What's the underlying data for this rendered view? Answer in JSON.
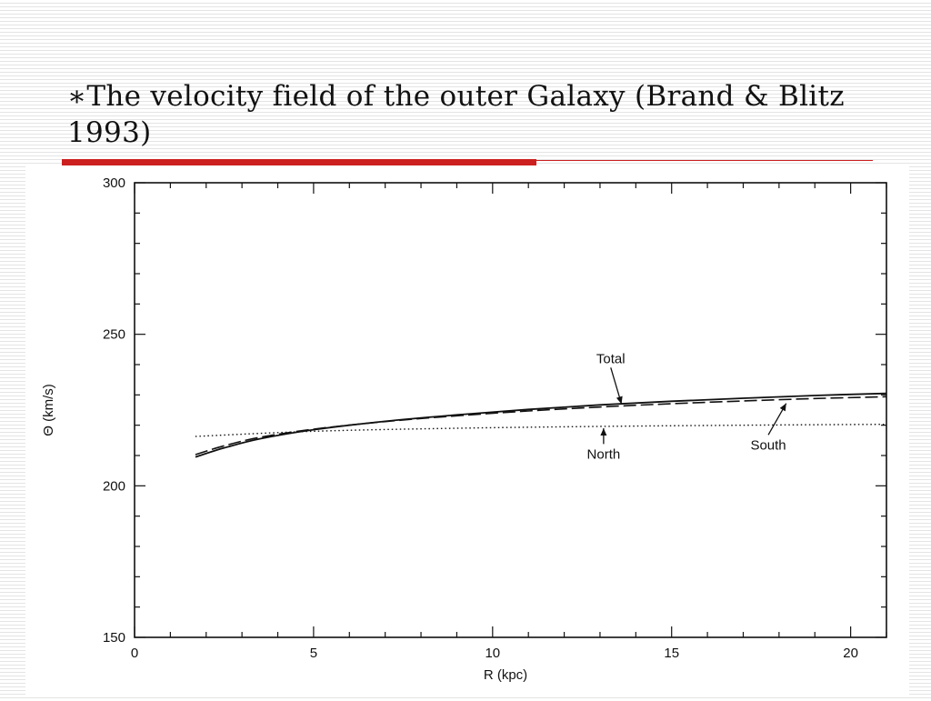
{
  "slide": {
    "title": "∗The velocity field of the outer Galaxy (Brand & Blitz 1993)"
  },
  "chart_data": {
    "type": "line",
    "xlabel": "R (kpc)",
    "ylabel": "Θ (km/s)",
    "xlim": [
      0,
      21
    ],
    "ylim": [
      150,
      300
    ],
    "xticks": [
      0,
      5,
      10,
      15,
      20
    ],
    "yticks": [
      150,
      200,
      250,
      300
    ],
    "grid": false,
    "legend": "none",
    "series": [
      {
        "name": "Total",
        "style": "solid",
        "x": [
          1.7,
          2.5,
          3.5,
          5,
          7,
          9,
          11,
          13,
          15,
          17,
          19,
          21
        ],
        "y": [
          209.5,
          212.5,
          215.5,
          218.5,
          221.3,
          223.4,
          225.2,
          226.7,
          227.9,
          228.9,
          229.8,
          230.5
        ]
      },
      {
        "name": "South",
        "style": "dashed",
        "x": [
          1.7,
          2.5,
          3.5,
          5,
          7,
          9,
          11,
          13,
          15,
          17,
          19,
          21
        ],
        "y": [
          210.3,
          213.2,
          216.0,
          218.7,
          221.2,
          223.1,
          224.7,
          226.0,
          227.1,
          228.0,
          228.8,
          229.4
        ]
      },
      {
        "name": "North",
        "style": "dotted",
        "x": [
          1.7,
          5,
          9,
          13,
          17,
          21
        ],
        "y": [
          216.3,
          218.0,
          219.0,
          219.6,
          220.0,
          220.3
        ]
      }
    ],
    "annotations": [
      {
        "text": "Total",
        "series": "Total",
        "x": 13.3,
        "y": 240.5,
        "arrow_to": [
          13.6,
          227.0
        ]
      },
      {
        "text": "North",
        "series": "North",
        "x": 13.1,
        "y": 209.0,
        "arrow_to": [
          13.1,
          219.0
        ]
      },
      {
        "text": "South",
        "series": "South",
        "x": 17.7,
        "y": 212.0,
        "arrow_to": [
          18.2,
          227.2
        ]
      }
    ]
  },
  "colors": {
    "accent_rule": "#cc1f1f",
    "ink": "#111111"
  }
}
